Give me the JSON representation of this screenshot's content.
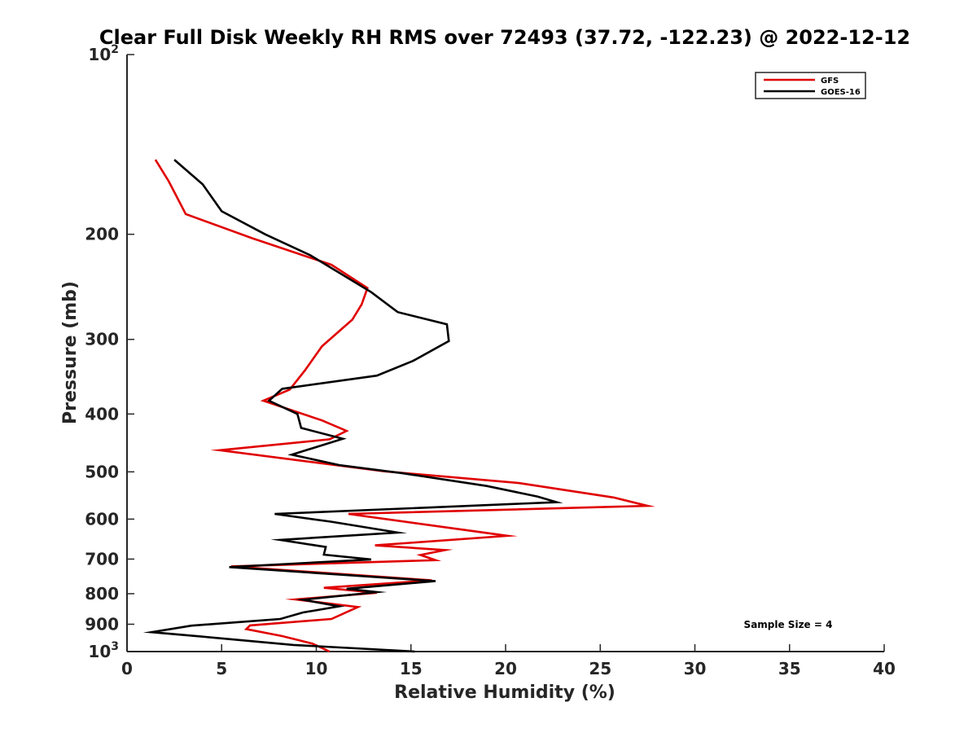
{
  "chart_data": {
    "type": "line",
    "title": "Clear Full Disk Weekly RH RMS over 72493 (37.72, -122.23) @ 2022-12-12",
    "xlabel": "Relative Humidity (%)",
    "ylabel": "Pressure (mb)",
    "xlim": [
      0,
      40
    ],
    "ylim": [
      100,
      1000
    ],
    "y_scale": "log",
    "y_reversed": true,
    "x_ticks": [
      0,
      5,
      10,
      15,
      20,
      25,
      30,
      35,
      40
    ],
    "y_ticks": [
      {
        "value": 100,
        "label": "10",
        "sup": "2"
      },
      {
        "value": 200,
        "label": "200"
      },
      {
        "value": 300,
        "label": "300"
      },
      {
        "value": 400,
        "label": "400"
      },
      {
        "value": 500,
        "label": "500"
      },
      {
        "value": 600,
        "label": "600"
      },
      {
        "value": 700,
        "label": "700"
      },
      {
        "value": 800,
        "label": "800"
      },
      {
        "value": 900,
        "label": "900"
      },
      {
        "value": 1000,
        "label": "10",
        "sup": "3"
      }
    ],
    "grid": false,
    "legend_position": "top-right",
    "annotation": "Sample Size = 4",
    "series": [
      {
        "name": "GFS",
        "color": "#e00000",
        "points": [
          [
            1.5,
            150
          ],
          [
            2.2,
            163
          ],
          [
            3.1,
            185
          ],
          [
            6.6,
            203
          ],
          [
            10.8,
            225
          ],
          [
            12.7,
            246
          ],
          [
            12.4,
            262
          ],
          [
            11.9,
            278
          ],
          [
            10.3,
            308
          ],
          [
            9.4,
            338
          ],
          [
            8.6,
            364
          ],
          [
            7.2,
            380
          ],
          [
            10.3,
            410
          ],
          [
            11.6,
            427
          ],
          [
            10.7,
            441
          ],
          [
            4.9,
            460
          ],
          [
            13.6,
            499
          ],
          [
            20.7,
            522
          ],
          [
            25.7,
            552
          ],
          [
            27.5,
            570
          ],
          [
            11.7,
            588
          ],
          [
            20.1,
            640
          ],
          [
            13.1,
            664
          ],
          [
            16.8,
            676
          ],
          [
            15.5,
            689
          ],
          [
            16.3,
            703
          ],
          [
            5.5,
            720
          ],
          [
            16.1,
            760
          ],
          [
            10.4,
            782
          ],
          [
            13.2,
            797
          ],
          [
            8.9,
            818
          ],
          [
            12.2,
            842
          ],
          [
            10.8,
            882
          ],
          [
            6.5,
            904
          ],
          [
            6.3,
            917
          ],
          [
            8.2,
            942
          ],
          [
            9.8,
            970
          ],
          [
            10.7,
            1000
          ]
        ]
      },
      {
        "name": "GOES-16",
        "color": "#000000",
        "points": [
          [
            2.5,
            150
          ],
          [
            4.0,
            165
          ],
          [
            5.0,
            183
          ],
          [
            7.3,
            200
          ],
          [
            9.7,
            217
          ],
          [
            12.9,
            250
          ],
          [
            14.3,
            270
          ],
          [
            16.9,
            283
          ],
          [
            17.0,
            302
          ],
          [
            15.1,
            326
          ],
          [
            13.2,
            345
          ],
          [
            8.2,
            363
          ],
          [
            7.5,
            380
          ],
          [
            9.0,
            400
          ],
          [
            9.2,
            422
          ],
          [
            11.4,
            440
          ],
          [
            8.7,
            468
          ],
          [
            11.2,
            487
          ],
          [
            14.6,
            503
          ],
          [
            19.0,
            528
          ],
          [
            21.7,
            550
          ],
          [
            22.7,
            562
          ],
          [
            7.8,
            588
          ],
          [
            10.8,
            606
          ],
          [
            14.3,
            632
          ],
          [
            8.1,
            650
          ],
          [
            10.5,
            668
          ],
          [
            10.4,
            688
          ],
          [
            12.9,
            701
          ],
          [
            5.4,
            722
          ],
          [
            16.3,
            762
          ],
          [
            11.6,
            785
          ],
          [
            13.2,
            795
          ],
          [
            9.3,
            819
          ],
          [
            11.2,
            840
          ],
          [
            9.3,
            860
          ],
          [
            8.1,
            882
          ],
          [
            3.4,
            905
          ],
          [
            1.3,
            928
          ],
          [
            4.0,
            944
          ],
          [
            8.8,
            975
          ],
          [
            15.2,
            1000
          ]
        ]
      }
    ]
  }
}
